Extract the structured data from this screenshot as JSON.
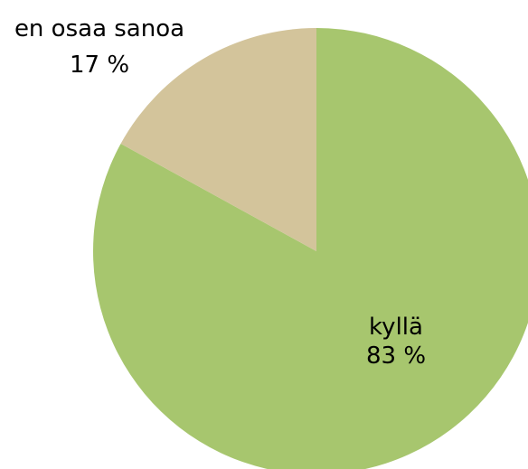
{
  "chart_data": {
    "type": "pie",
    "title": "",
    "start_angle_deg": 0,
    "direction": "clockwise",
    "slices": [
      {
        "label": "kyllä",
        "value": 83,
        "value_label": "83 %",
        "color": "#a7c66e"
      },
      {
        "label": "en osaa sanoa",
        "value": 17,
        "value_label": "17 %",
        "color": "#d3c49b"
      }
    ]
  }
}
